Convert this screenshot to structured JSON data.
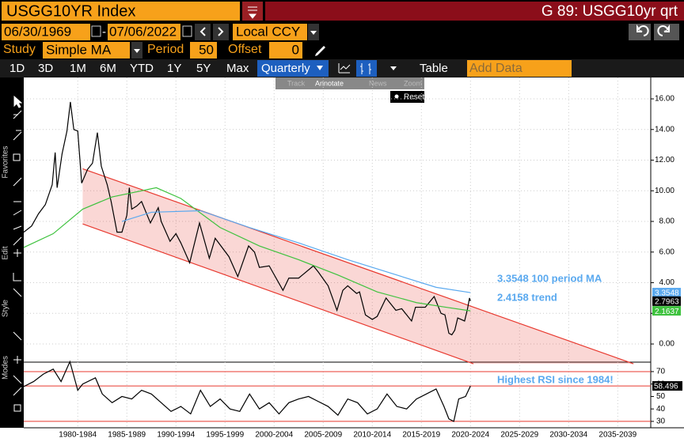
{
  "header": {
    "security": "USGG10YR Index",
    "page_title": "G 89: USGG10yr qrt"
  },
  "toolbar": {
    "start_date": "06/30/1969",
    "end_date": "07/06/2022",
    "currency": "Local CCY",
    "study_label": "Study",
    "study": "Simple MA",
    "period_label": "Period",
    "period": 50,
    "offset_label": "Offset",
    "offset": 0,
    "ranges": [
      "1D",
      "3D",
      "1M",
      "6M",
      "YTD",
      "1Y",
      "5Y",
      "Max"
    ],
    "frequency": "Quarterly",
    "table": "Table",
    "add_data": "Add Data"
  },
  "chart_tools": [
    "Track",
    "Annotate",
    "News",
    "Zoom"
  ],
  "reset": "Reset",
  "side_labels": [
    "Favorites",
    "Edit",
    "Style",
    "Modes"
  ],
  "xaxis": {
    "xlim": [
      1977,
      2040.7
    ],
    "xticks": [
      {
        "value": 1982.5,
        "label": "1980-1984"
      },
      {
        "value": 1987.5,
        "label": "1985-1989"
      },
      {
        "value": 1992.5,
        "label": "1990-1994"
      },
      {
        "value": 1997.5,
        "label": "1995-1999"
      },
      {
        "value": 2002.5,
        "label": "2000-2004"
      },
      {
        "value": 2007.5,
        "label": "2005-2009"
      },
      {
        "value": 2012.5,
        "label": "2010-2014"
      },
      {
        "value": 2017.5,
        "label": "2015-2019"
      },
      {
        "value": 2022.5,
        "label": "2020-2024"
      },
      {
        "value": 2027.5,
        "label": "2025-2029"
      },
      {
        "value": 2032.5,
        "label": "2030-2034"
      },
      {
        "value": 2037.5,
        "label": "2035-2039"
      }
    ]
  },
  "chart": {
    "type": "line",
    "ylim": [
      -1.03,
      17.55
    ],
    "yticks": [
      {
        "value": 16,
        "label": "16.00"
      },
      {
        "value": 14,
        "label": "14.00"
      },
      {
        "value": 12,
        "label": "12.00"
      },
      {
        "value": 10,
        "label": "10.00"
      },
      {
        "value": 8,
        "label": "8.00"
      },
      {
        "value": 6,
        "label": "6.00"
      },
      {
        "value": 4,
        "label": "4.00"
      },
      {
        "value": 2,
        "label": "2.00"
      },
      {
        "value": 0,
        "label": "0.00"
      }
    ],
    "grid": true,
    "trend": {
      "color": "#e8392f",
      "upper": {
        "x": [
          1983,
          2039.1
        ],
        "values": [
          11.44,
          -1.29
        ]
      },
      "lower": {
        "x": [
          1983,
          2022.8
        ],
        "values": [
          7.84,
          -1.29
        ]
      }
    },
    "series": [
      {
        "color": "#000000",
        "x": [
          1977.0,
          1977.8,
          1978.5,
          1979.2,
          1979.9,
          1980.2,
          1980.4,
          1980.9,
          1981.4,
          1981.75,
          1982.1,
          1982.5,
          1982.9,
          1983.5,
          1984.0,
          1984.5,
          1984.9,
          1985.5,
          1985.9,
          1986.5,
          1987.0,
          1987.5,
          1987.75,
          1988.0,
          1988.5,
          1989.0,
          1989.9,
          1990.7,
          1991.0,
          1991.9,
          1992.5,
          1993.0,
          1993.9,
          1994.9,
          1995.9,
          1996.5,
          1997.9,
          1998.8,
          1999.9,
          2000.5,
          2001.0,
          2002.0,
          2003.4,
          2004.0,
          2005.0,
          2006.5,
          2007.0,
          2008.0,
          2008.9,
          2009.5,
          2010.0,
          2010.9,
          2011.2,
          2011.8,
          2012.5,
          2013.0,
          2013.9,
          2014.9,
          2015.5,
          2016.5,
          2016.9,
          2017.9,
          2018.8,
          2019.5,
          2019.9,
          2020.3,
          2020.6,
          2020.9,
          2021.2,
          2021.9,
          2022.2,
          2022.4,
          2022.5
        ],
        "values": [
          7.3,
          7.7,
          8.5,
          9.1,
          10.4,
          12.5,
          10.2,
          12.4,
          13.9,
          15.8,
          14.0,
          13.9,
          10.5,
          11.4,
          11.8,
          13.8,
          11.6,
          10.4,
          9.3,
          7.3,
          7.3,
          8.4,
          10.2,
          8.8,
          9.0,
          9.3,
          7.9,
          8.9,
          8.0,
          6.7,
          7.2,
          6.6,
          5.3,
          7.9,
          5.6,
          6.9,
          5.7,
          4.4,
          6.4,
          6.0,
          5.0,
          5.1,
          3.5,
          4.3,
          4.3,
          5.1,
          4.7,
          3.8,
          2.2,
          3.5,
          3.8,
          3.3,
          3.4,
          1.9,
          1.6,
          1.8,
          3.0,
          2.2,
          2.3,
          1.5,
          2.4,
          2.4,
          3.1,
          2.0,
          1.9,
          0.7,
          0.6,
          0.9,
          1.7,
          1.5,
          2.3,
          3.0,
          2.7963
        ]
      },
      {
        "color": "#3ec23e",
        "x": [
          1977,
          1980,
          1983,
          1986,
          1990.5,
          1993,
          1997,
          2001,
          2005,
          2009,
          2013,
          2017,
          2020,
          2022.5
        ],
        "values": [
          6.3,
          7.2,
          8.8,
          9.6,
          10.2,
          9.5,
          7.6,
          6.4,
          5.5,
          4.5,
          3.4,
          2.7,
          2.4,
          2.1637
        ]
      },
      {
        "color": "#5aa9ef",
        "x": [
          1987,
          1990,
          1995,
          2000,
          2005,
          2010,
          2015,
          2019,
          2022.5
        ],
        "values": [
          8.0,
          8.6,
          8.7,
          7.6,
          6.6,
          5.5,
          4.5,
          3.7,
          3.3548
        ]
      }
    ],
    "last_values": [
      {
        "value": 3.3548,
        "color": "#5aa9ef"
      },
      {
        "value": 2.7963,
        "color": "#000000"
      },
      {
        "value": 2.1637,
        "color": "#3ec23e"
      }
    ],
    "annotations": [
      "3.3548 100 period MA",
      "2.4158 trend"
    ]
  },
  "rsi": {
    "type": "line",
    "ylim": [
      25.5,
      77.6
    ],
    "yticks": [
      70,
      60,
      50,
      40,
      30
    ],
    "reference_lines": [
      70,
      30
    ],
    "series": [
      {
        "color": "#000000",
        "x": [
          1977,
          1978,
          1979,
          1980,
          1980.8,
          1981.7,
          1982.5,
          1983,
          1984.3,
          1985,
          1986,
          1987,
          1988,
          1989,
          1990,
          1991,
          1992,
          1993,
          1994,
          1995,
          1996,
          1997,
          1998,
          1999,
          2000,
          2001,
          2002,
          2003,
          2004,
          2005,
          2006,
          2007,
          2008,
          2009,
          2010,
          2011,
          2012,
          2013,
          2014,
          2015,
          2016,
          2017,
          2018,
          2019,
          2019.8,
          2020.3,
          2020.8,
          2021.3,
          2022,
          2022.5
        ],
        "values": [
          58,
          62,
          68,
          72,
          62,
          78,
          55,
          60,
          65,
          52,
          45,
          50,
          48,
          55,
          52,
          45,
          38,
          42,
          36,
          55,
          42,
          48,
          40,
          38,
          52,
          40,
          45,
          36,
          45,
          48,
          50,
          46,
          42,
          35,
          48,
          45,
          36,
          40,
          52,
          42,
          40,
          48,
          52,
          56,
          42,
          32,
          30,
          48,
          50,
          58.496
        ]
      }
    ],
    "last_value": {
      "value": 58.496,
      "color": "#000000"
    },
    "annotation": "Highest RSI since 1984!"
  }
}
